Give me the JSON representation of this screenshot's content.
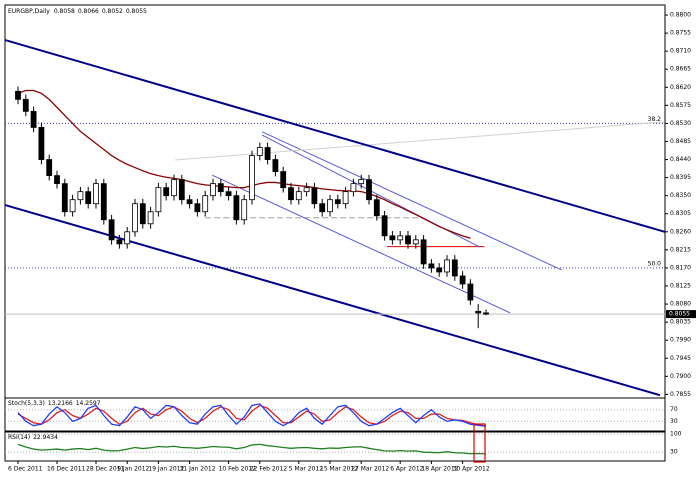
{
  "chart_data": {
    "type": "candlestick",
    "title": "EURGBP,Daily",
    "ylim": [
      0.7846,
      0.8825
    ],
    "yticks": [
      {
        "value": 0.88,
        "label": "0.8800"
      },
      0.8755,
      {
        "value": 0.871,
        "label": "0.8710"
      },
      0.8665,
      {
        "value": 0.862,
        "label": "0.8620"
      },
      0.8575,
      {
        "value": 0.853,
        "label": "0.8530"
      },
      0.8485,
      {
        "value": 0.844,
        "label": "0.8440"
      },
      0.8395,
      {
        "value": 0.835,
        "label": "0.8350"
      },
      0.8305,
      {
        "value": 0.826,
        "label": "0.8260"
      },
      0.8215,
      {
        "value": 0.817,
        "label": "0.8170"
      },
      0.8125,
      {
        "value": 0.808,
        "label": "0.8080"
      },
      0.8035,
      {
        "value": 0.799,
        "label": "0.7990"
      },
      0.7945,
      {
        "value": 0.79,
        "label": "0.7900"
      },
      0.7855
    ],
    "xticks": [
      {
        "value": 0,
        "label": "6 Dec 2011"
      },
      {
        "value": 5,
        "label": "16 Dec 2011"
      },
      {
        "value": 10,
        "label": "28 Dec 2011"
      },
      {
        "value": 14,
        "label": "9 Jan 2012"
      },
      {
        "value": 18,
        "label": "19 Jan 2012"
      },
      {
        "value": 22,
        "label": "31 Jan 2012"
      },
      {
        "value": 27,
        "label": "10 Feb 2012"
      },
      {
        "value": 31,
        "label": "22 Feb 2012"
      },
      {
        "value": 36,
        "label": "5 Mar 2012"
      },
      {
        "value": 40,
        "label": "15 Mar 2012"
      },
      {
        "value": 44,
        "label": "27 Mar 2012"
      },
      {
        "value": 49,
        "label": "6 Apr 2012"
      },
      {
        "value": 53,
        "label": "18 Apr 2012"
      },
      {
        "value": 57,
        "label": "30 Apr 2012"
      }
    ],
    "candles": {
      "open": [
        0.861,
        0.859,
        0.856,
        0.852,
        0.844,
        0.84,
        0.838,
        0.831,
        0.834,
        0.836,
        0.833,
        0.838,
        0.829,
        0.824,
        0.823,
        0.826,
        0.833,
        0.828,
        0.831,
        0.837,
        0.835,
        0.839,
        0.834,
        0.833,
        0.831,
        0.835,
        0.838,
        0.836,
        0.835,
        0.829,
        0.834,
        0.845,
        0.847,
        0.844,
        0.841,
        0.837,
        0.834,
        0.836,
        0.837,
        0.833,
        0.831,
        0.834,
        0.833,
        0.836,
        0.838,
        0.839,
        0.834,
        0.83,
        0.825,
        0.824,
        0.825,
        0.823,
        0.824,
        0.818,
        0.817,
        0.816,
        0.819,
        0.815,
        0.813,
        0.8062,
        0.8058
      ],
      "high": [
        0.8622,
        0.8602,
        0.8572,
        0.8532,
        0.8452,
        0.8412,
        0.8392,
        0.8352,
        0.8372,
        0.8372,
        0.8392,
        0.8392,
        0.8302,
        0.8252,
        0.8272,
        0.8342,
        0.8342,
        0.8322,
        0.8382,
        0.8382,
        0.8402,
        0.8402,
        0.8352,
        0.8342,
        0.8362,
        0.8392,
        0.8392,
        0.8372,
        0.8362,
        0.8352,
        0.8462,
        0.8482,
        0.8482,
        0.8452,
        0.8422,
        0.8382,
        0.8372,
        0.8382,
        0.8382,
        0.8342,
        0.8352,
        0.8352,
        0.8372,
        0.8392,
        0.8402,
        0.8402,
        0.8352,
        0.8312,
        0.8262,
        0.8262,
        0.8262,
        0.8252,
        0.8252,
        0.8192,
        0.8182,
        0.8202,
        0.8202,
        0.8162,
        0.8142,
        0.808,
        0.8066
      ],
      "low": [
        0.8578,
        0.8548,
        0.8508,
        0.8428,
        0.8388,
        0.8368,
        0.8298,
        0.8298,
        0.8328,
        0.8318,
        0.8318,
        0.8278,
        0.8228,
        0.8218,
        0.8218,
        0.8248,
        0.8268,
        0.8268,
        0.8298,
        0.8338,
        0.8338,
        0.8328,
        0.8318,
        0.8298,
        0.8298,
        0.8338,
        0.8348,
        0.8338,
        0.8278,
        0.8278,
        0.8328,
        0.8438,
        0.8428,
        0.8398,
        0.8358,
        0.8328,
        0.8328,
        0.8348,
        0.8318,
        0.8298,
        0.8298,
        0.8318,
        0.8318,
        0.8348,
        0.8368,
        0.8328,
        0.8288,
        0.8238,
        0.8228,
        0.8228,
        0.8218,
        0.8218,
        0.8168,
        0.8158,
        0.8148,
        0.8148,
        0.8138,
        0.8118,
        0.8078,
        0.802,
        0.8052
      ],
      "close": [
        0.859,
        0.856,
        0.852,
        0.844,
        0.84,
        0.838,
        0.831,
        0.834,
        0.836,
        0.833,
        0.838,
        0.829,
        0.824,
        0.823,
        0.826,
        0.833,
        0.828,
        0.831,
        0.837,
        0.835,
        0.839,
        0.834,
        0.833,
        0.831,
        0.835,
        0.838,
        0.836,
        0.835,
        0.829,
        0.834,
        0.845,
        0.847,
        0.844,
        0.841,
        0.837,
        0.834,
        0.836,
        0.837,
        0.833,
        0.831,
        0.834,
        0.833,
        0.836,
        0.838,
        0.839,
        0.834,
        0.83,
        0.825,
        0.824,
        0.825,
        0.823,
        0.824,
        0.818,
        0.817,
        0.816,
        0.819,
        0.815,
        0.813,
        0.809,
        0.8058,
        0.8055
      ]
    },
    "ma": {
      "color": "#8b0000",
      "values": [
        0.8605,
        0.8612,
        0.8612,
        0.8605,
        0.859,
        0.857,
        0.855,
        0.853,
        0.851,
        0.8495,
        0.848,
        0.8465,
        0.845,
        0.8438,
        0.8428,
        0.842,
        0.8412,
        0.8405,
        0.84,
        0.8396,
        0.8393,
        0.839,
        0.8385,
        0.838,
        0.8377,
        0.8375,
        0.8373,
        0.8372,
        0.837,
        0.837,
        0.8375,
        0.838,
        0.8383,
        0.8383,
        0.838,
        0.8377,
        0.8375,
        0.8373,
        0.837,
        0.8367,
        0.8365,
        0.8363,
        0.8362,
        0.8362,
        0.836,
        0.8355,
        0.8348,
        0.834,
        0.833,
        0.8322,
        0.8312,
        0.8303,
        0.8293,
        0.8283,
        0.8273,
        0.8265,
        0.8257,
        0.825,
        0.8244,
        null,
        null
      ]
    },
    "channel_lines": [
      {
        "x": [
          -1.7,
          82.9
        ],
        "y": [
          0.8738,
          0.826
        ],
        "color": "#00008b"
      },
      {
        "x": [
          -1.7,
          82.3
        ],
        "y": [
          0.8327,
          0.7853
        ],
        "color": "#00008b"
      }
    ],
    "trend_lines": [
      {
        "x": [
          31.3,
          69.7
        ],
        "y": [
          0.8509,
          0.8165
        ],
        "color": "#5a5ad2"
      },
      {
        "x": [
          24.9,
          63.1
        ],
        "y": [
          0.8401,
          0.8058
        ],
        "color": "#5a5ad2"
      },
      {
        "x": [
          31.3,
          59.2
        ],
        "y": [
          0.8501,
          0.8222
        ],
        "color": "#5a5ad2"
      },
      {
        "x": [
          20.1,
          82.9
        ],
        "y": [
          0.8439,
          0.8534
        ],
        "color": "#d0d0d0"
      }
    ],
    "levels": [
      {
        "value": 0.853,
        "label": "38.2",
        "color": "#3c3cc8"
      },
      {
        "value": 0.817,
        "label": "50.0",
        "color": "#3c3cc8"
      }
    ],
    "segments": [
      {
        "value": 0.8223,
        "x": [
          47.3,
          59.8
        ],
        "color": "#e00000"
      },
      {
        "value": 0.8295,
        "x": [
          24,
          51.5
        ],
        "color": "#a0a0a0"
      }
    ],
    "stochastic": {
      "label": "Stoch(5,3,3)",
      "ylim": [
        0,
        100
      ],
      "yticks": [
        70,
        30
      ],
      "main": {
        "color": "#2040ff",
        "values": [
          60,
          30,
          15,
          20,
          55,
          80,
          60,
          30,
          40,
          75,
          85,
          50,
          20,
          15,
          45,
          80,
          70,
          40,
          60,
          85,
          80,
          50,
          25,
          20,
          55,
          80,
          85,
          50,
          20,
          45,
          85,
          90,
          60,
          30,
          15,
          30,
          60,
          75,
          40,
          20,
          50,
          80,
          85,
          60,
          30,
          15,
          20,
          40,
          60,
          75,
          50,
          25,
          50,
          70,
          45,
          30,
          35,
          30,
          20,
          16,
          13.2166
        ]
      },
      "signal": {
        "color": "#e02020",
        "values": [
          55,
          40,
          25,
          20,
          35,
          60,
          70,
          50,
          40,
          55,
          75,
          65,
          40,
          20,
          30,
          60,
          75,
          55,
          50,
          70,
          80,
          65,
          40,
          25,
          40,
          65,
          80,
          70,
          40,
          35,
          65,
          85,
          75,
          50,
          25,
          25,
          45,
          65,
          55,
          30,
          35,
          60,
          80,
          70,
          45,
          25,
          20,
          30,
          50,
          65,
          60,
          40,
          40,
          55,
          55,
          40,
          35,
          33,
          25,
          18,
          14.2597
        ]
      }
    },
    "rsi": {
      "label": "RSI(14)",
      "ylim": [
        0,
        100
      ],
      "yticks": [
        100,
        30
      ],
      "line": {
        "color": "#208020",
        "values": [
          60,
          50,
          42,
          38,
          40,
          42,
          38,
          42,
          44,
          40,
          45,
          38,
          35,
          36,
          42,
          48,
          44,
          47,
          52,
          50,
          53,
          48,
          47,
          45,
          48,
          52,
          50,
          49,
          43,
          48,
          58,
          60,
          55,
          52,
          48,
          45,
          47,
          48,
          45,
          43,
          46,
          45,
          48,
          50,
          51,
          45,
          40,
          35,
          34,
          36,
          34,
          35,
          30,
          29,
          28,
          32,
          28,
          27,
          24,
          25,
          22.9434
        ]
      }
    }
  }
}
